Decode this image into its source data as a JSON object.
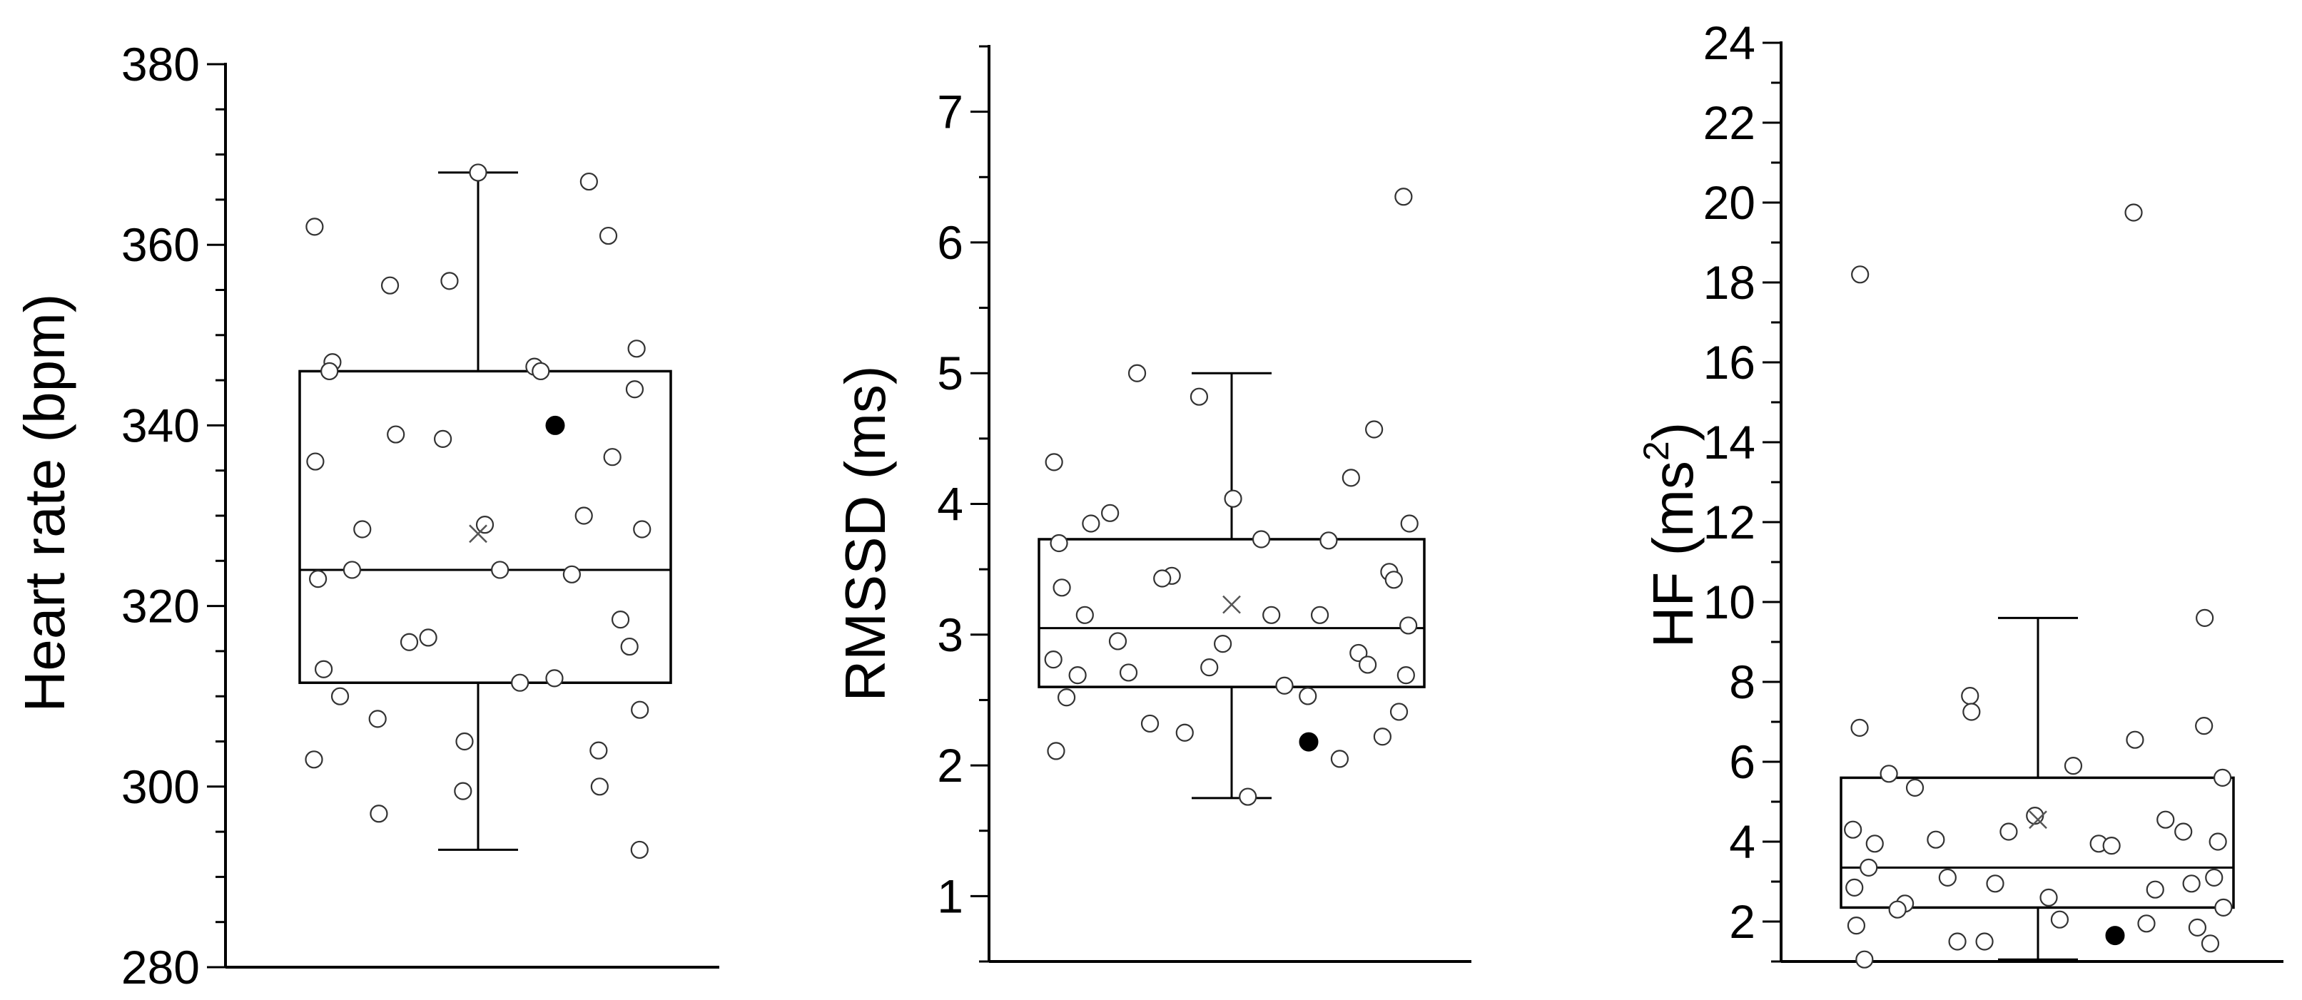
{
  "chart_data": [
    {
      "type": "box",
      "ylabel": "Heart rate (bpm)",
      "ylim": [
        280,
        380
      ],
      "yticks": [
        280,
        300,
        320,
        340,
        360,
        380
      ],
      "minor_step": 5,
      "box": {
        "q1": 311.5,
        "median": 324,
        "q3": 346,
        "mean": 328,
        "whisker_low": 293,
        "whisker_high": 368
      },
      "points": [
        {
          "y": 368
        },
        {
          "y": 367
        },
        {
          "y": 362
        },
        {
          "y": 361
        },
        {
          "y": 356
        },
        {
          "y": 355.5
        },
        {
          "y": 348.5
        },
        {
          "y": 347
        },
        {
          "y": 346.5
        },
        {
          "y": 346
        },
        {
          "y": 346
        },
        {
          "y": 344
        },
        {
          "y": 339
        },
        {
          "y": 338.5
        },
        {
          "y": 336.5
        },
        {
          "y": 336
        },
        {
          "y": 330
        },
        {
          "y": 329
        },
        {
          "y": 328.5
        },
        {
          "y": 328.5
        },
        {
          "y": 324
        },
        {
          "y": 324
        },
        {
          "y": 323.5
        },
        {
          "y": 323
        },
        {
          "y": 318.5
        },
        {
          "y": 316.5
        },
        {
          "y": 316
        },
        {
          "y": 315.5
        },
        {
          "y": 313
        },
        {
          "y": 312
        },
        {
          "y": 311.5
        },
        {
          "y": 310
        },
        {
          "y": 308.5
        },
        {
          "y": 307.5
        },
        {
          "y": 305
        },
        {
          "y": 304
        },
        {
          "y": 303
        },
        {
          "y": 300
        },
        {
          "y": 299.5
        },
        {
          "y": 297
        },
        {
          "y": 293
        }
      ],
      "highlight": {
        "y": 340
      }
    },
    {
      "type": "box",
      "ylabel": "RMSSD (ms)",
      "ylim": [
        0.5,
        7.5
      ],
      "yticks": [
        1,
        2,
        3,
        4,
        5,
        6,
        7
      ],
      "minor_step": 0.5,
      "box": {
        "q1": 2.6,
        "median": 3.05,
        "q3": 3.73,
        "mean": 3.23,
        "whisker_low": 1.75,
        "whisker_high": 5.0
      },
      "points": [
        {
          "y": 6.35
        },
        {
          "y": 5.0
        },
        {
          "y": 4.82
        },
        {
          "y": 4.57
        },
        {
          "y": 4.32
        },
        {
          "y": 4.2
        },
        {
          "y": 4.04
        },
        {
          "y": 3.93
        },
        {
          "y": 3.85
        },
        {
          "y": 3.85
        },
        {
          "y": 3.73
        },
        {
          "y": 3.72
        },
        {
          "y": 3.7
        },
        {
          "y": 3.48
        },
        {
          "y": 3.45
        },
        {
          "y": 3.43
        },
        {
          "y": 3.42
        },
        {
          "y": 3.36
        },
        {
          "y": 3.15
        },
        {
          "y": 3.15
        },
        {
          "y": 3.15
        },
        {
          "y": 3.07
        },
        {
          "y": 2.95
        },
        {
          "y": 2.93
        },
        {
          "y": 2.86
        },
        {
          "y": 2.81
        },
        {
          "y": 2.77
        },
        {
          "y": 2.75
        },
        {
          "y": 2.71
        },
        {
          "y": 2.69
        },
        {
          "y": 2.69
        },
        {
          "y": 2.61
        },
        {
          "y": 2.53
        },
        {
          "y": 2.52
        },
        {
          "y": 2.41
        },
        {
          "y": 2.32
        },
        {
          "y": 2.25
        },
        {
          "y": 2.22
        },
        {
          "y": 2.11
        },
        {
          "y": 2.05
        },
        {
          "y": 1.76
        }
      ],
      "highlight": {
        "y": 2.18
      }
    },
    {
      "type": "box",
      "ylabel_main": "HF (ms",
      "ylabel_sup": "2",
      "ylabel_end": ")",
      "ylim": [
        1,
        24
      ],
      "yticks": [
        2,
        4,
        6,
        8,
        10,
        12,
        14,
        16,
        18,
        20,
        22,
        24
      ],
      "minor_step": 1,
      "box": {
        "q1": 2.35,
        "median": 3.35,
        "q3": 5.6,
        "mean": 4.55,
        "whisker_low": 1.05,
        "whisker_high": 9.6
      },
      "points": [
        {
          "y": 19.75
        },
        {
          "y": 18.2
        },
        {
          "y": 9.6
        },
        {
          "y": 7.65
        },
        {
          "y": 7.25
        },
        {
          "y": 6.9
        },
        {
          "y": 6.85
        },
        {
          "y": 6.55
        },
        {
          "y": 5.9
        },
        {
          "y": 5.7
        },
        {
          "y": 5.6
        },
        {
          "y": 5.35
        },
        {
          "y": 4.65
        },
        {
          "y": 4.55
        },
        {
          "y": 4.3
        },
        {
          "y": 4.25
        },
        {
          "y": 4.25
        },
        {
          "y": 4.05
        },
        {
          "y": 4.0
        },
        {
          "y": 3.95
        },
        {
          "y": 3.95
        },
        {
          "y": 3.9
        },
        {
          "y": 3.35
        },
        {
          "y": 3.1
        },
        {
          "y": 3.1
        },
        {
          "y": 2.95
        },
        {
          "y": 2.95
        },
        {
          "y": 2.85
        },
        {
          "y": 2.8
        },
        {
          "y": 2.6
        },
        {
          "y": 2.45
        },
        {
          "y": 2.35
        },
        {
          "y": 2.3
        },
        {
          "y": 2.05
        },
        {
          "y": 1.95
        },
        {
          "y": 1.9
        },
        {
          "y": 1.85
        },
        {
          "y": 1.5
        },
        {
          "y": 1.5
        },
        {
          "y": 1.45
        },
        {
          "y": 1.05
        }
      ],
      "highlight": {
        "y": 1.65
      }
    }
  ]
}
